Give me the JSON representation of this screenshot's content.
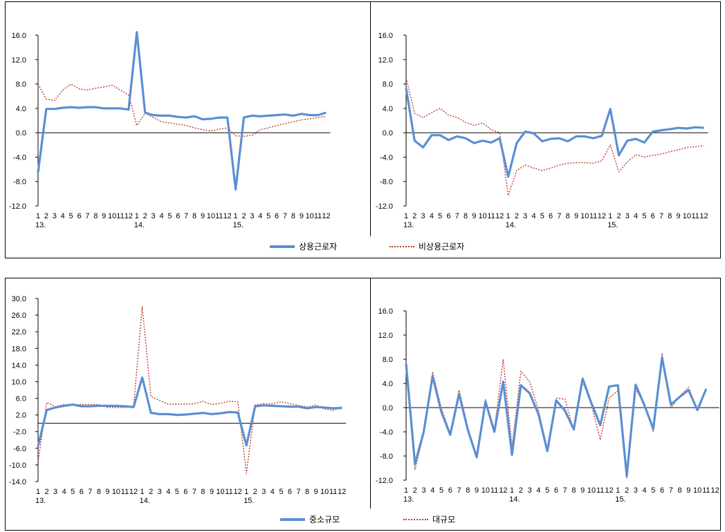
{
  "legends": {
    "top": {
      "solid": "상용근로자",
      "dotted": "비상용근로자"
    },
    "bottom": {
      "solid": "중소규모",
      "dotted": "대규모"
    }
  },
  "colors": {
    "solid": "#5b8ed3",
    "dotted": "#c0392b"
  },
  "x_ticks": [
    "1",
    "2",
    "3",
    "4",
    "5",
    "6",
    "7",
    "8",
    "9",
    "10",
    "11",
    "12",
    "1",
    "2",
    "3",
    "4",
    "5",
    "6",
    "7",
    "8",
    "9",
    "10",
    "11",
    "12",
    "1",
    "2",
    "3",
    "4",
    "5",
    "6",
    "7",
    "8",
    "9",
    "10",
    "11",
    "12"
  ],
  "year_labels": [
    {
      "index": 0,
      "label": "13."
    },
    {
      "index": 12,
      "label": "14."
    },
    {
      "index": 24,
      "label": "15."
    }
  ],
  "chart_data": [
    {
      "type": "line",
      "ylim": [
        -12,
        16
      ],
      "yticks": [
        "16.0",
        "12.0",
        "8.0",
        "4.0",
        "0.0",
        "-4.0",
        "-8.0",
        "-12.0"
      ],
      "series": [
        {
          "name": "상용근로자",
          "style": "solid",
          "values": [
            -6.5,
            3.9,
            3.9,
            4.1,
            4.2,
            4.1,
            4.2,
            4.2,
            4.0,
            4.0,
            4.0,
            3.8,
            16.5,
            3.3,
            2.9,
            2.8,
            2.8,
            2.6,
            2.5,
            2.7,
            2.2,
            2.3,
            2.5,
            2.5,
            -9.3,
            2.5,
            2.8,
            2.7,
            2.8,
            2.9,
            3.0,
            2.8,
            3.1,
            2.9,
            2.9,
            3.3
          ]
        },
        {
          "name": "비상용근로자",
          "style": "dotted",
          "values": [
            8.0,
            5.5,
            5.3,
            7.0,
            8.0,
            7.2,
            7.0,
            7.3,
            7.5,
            7.8,
            7.0,
            6.2,
            1.2,
            3.2,
            2.5,
            1.8,
            1.6,
            1.4,
            1.2,
            0.8,
            0.5,
            0.3,
            0.6,
            0.8,
            -0.5,
            -0.6,
            -0.4,
            0.5,
            0.8,
            1.2,
            1.5,
            1.8,
            2.1,
            2.3,
            2.5,
            2.7
          ]
        }
      ]
    },
    {
      "type": "line",
      "ylim": [
        -12,
        16
      ],
      "yticks": [
        "16.0",
        "12.0",
        "8.0",
        "4.0",
        "0.0",
        "-4.0",
        "-8.0",
        "-12.0"
      ],
      "series": [
        {
          "name": "상용근로자",
          "style": "solid",
          "values": [
            7.3,
            -1.3,
            -2.4,
            -0.4,
            -0.4,
            -1.2,
            -0.6,
            -0.9,
            -1.7,
            -1.3,
            -1.6,
            -0.9,
            -7.2,
            -1.7,
            0.2,
            -0.1,
            -1.4,
            -1.0,
            -0.9,
            -1.4,
            -0.6,
            -0.6,
            -0.9,
            -0.5,
            3.9,
            -3.7,
            -1.3,
            -1.0,
            -1.6,
            0.2,
            0.4,
            0.6,
            0.8,
            0.7,
            0.9,
            0.8
          ]
        },
        {
          "name": "비상용근로자",
          "style": "dotted",
          "values": [
            9.0,
            3.2,
            2.5,
            3.3,
            4.0,
            2.9,
            2.5,
            1.7,
            1.2,
            1.6,
            0.5,
            0.0,
            -10.3,
            -6.2,
            -5.3,
            -5.8,
            -6.2,
            -5.8,
            -5.3,
            -5.0,
            -4.9,
            -4.9,
            -5.0,
            -4.6,
            -2.0,
            -6.4,
            -4.8,
            -3.6,
            -4.0,
            -3.7,
            -3.5,
            -3.1,
            -2.8,
            -2.4,
            -2.3,
            -2.1
          ]
        }
      ]
    },
    {
      "type": "line",
      "ylim": [
        -14,
        30
      ],
      "yticks": [
        "30.0",
        "26.0",
        "22.0",
        "18.0",
        "14.0",
        "10.0",
        "6.0",
        "2.0",
        "-2.0",
        "-6.0",
        "-10.0",
        "-14.0"
      ],
      "series": [
        {
          "name": "중소규모",
          "style": "solid",
          "values": [
            -5.5,
            3.2,
            3.8,
            4.2,
            4.5,
            4.1,
            4.1,
            4.2,
            4.2,
            4.2,
            4.1,
            3.9,
            11.0,
            2.5,
            2.2,
            2.2,
            2.0,
            2.1,
            2.3,
            2.5,
            2.2,
            2.4,
            2.7,
            2.6,
            -5.3,
            4.1,
            4.3,
            4.2,
            4.1,
            4.0,
            4.0,
            3.6,
            3.9,
            3.8,
            3.6,
            3.7
          ]
        },
        {
          "name": "대규모",
          "style": "dotted",
          "values": [
            -9.3,
            5.0,
            4.0,
            4.5,
            4.5,
            4.5,
            4.5,
            4.5,
            3.8,
            3.8,
            3.8,
            4.0,
            28.0,
            6.4,
            5.5,
            4.6,
            4.6,
            4.6,
            4.7,
            5.3,
            4.5,
            4.8,
            5.3,
            5.2,
            -12.0,
            4.4,
            4.7,
            4.7,
            5.2,
            4.7,
            4.3,
            3.9,
            4.4,
            3.4,
            3.1,
            4.0
          ]
        }
      ]
    },
    {
      "type": "line",
      "ylim": [
        -12,
        16
      ],
      "yticks": [
        "16.0",
        "12.0",
        "8.0",
        "4.0",
        "0.0",
        "-4.0",
        "-8.0",
        "-12.0"
      ],
      "series": [
        {
          "name": "중소규모",
          "style": "solid",
          "values": [
            7.3,
            -9.3,
            -4.0,
            5.2,
            -0.7,
            -4.5,
            2.3,
            -3.7,
            -8.2,
            1.0,
            -4.0,
            4.3,
            -7.8,
            3.7,
            2.4,
            -1.1,
            -7.2,
            1.2,
            -0.5,
            -3.6,
            4.8,
            0.7,
            -2.9,
            3.5,
            3.7,
            -11.3,
            3.8,
            0.4,
            -3.5,
            8.3,
            0.5,
            1.8,
            2.9,
            -0.4,
            3.1
          ]
        },
        {
          "name": "대규모",
          "style": "dotted",
          "values": [
            7.0,
            -10.3,
            -4.3,
            5.9,
            -0.1,
            -4.2,
            2.9,
            -3.3,
            -8.0,
            1.3,
            -3.6,
            8.0,
            -6.5,
            6.0,
            4.3,
            -0.4,
            -7.0,
            1.6,
            1.4,
            -3.8,
            4.3,
            0.4,
            -5.3,
            1.6,
            2.8,
            -11.6,
            3.0,
            0.7,
            -4.0,
            9.0,
            0.0,
            1.9,
            3.4,
            -0.6,
            2.9
          ]
        }
      ]
    }
  ]
}
